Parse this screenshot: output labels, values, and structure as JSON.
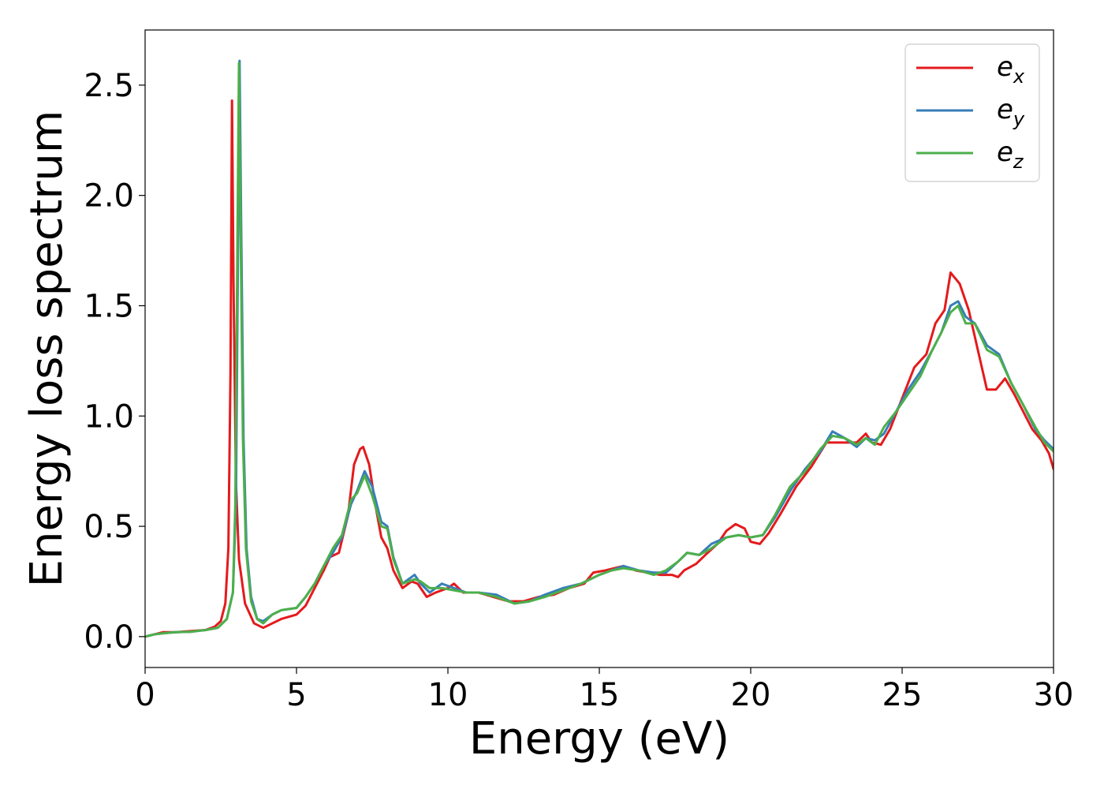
{
  "chart_data": {
    "type": "line",
    "xlabel": "Energy (eV)",
    "ylabel": "Energy loss spectrum",
    "xlim": [
      0,
      30
    ],
    "ylim": [
      -0.14,
      2.75
    ],
    "x_ticks": [
      "0",
      "5",
      "10",
      "15",
      "20",
      "25",
      "30"
    ],
    "y_ticks": [
      "0.0",
      "0.5",
      "1.0",
      "1.5",
      "2.0",
      "2.5"
    ],
    "grid": false,
    "legend_position": "top-right",
    "series": [
      {
        "name": "e_x",
        "legend_base": "e",
        "legend_sub": "x",
        "color": "#e41a1c",
        "points": [
          [
            0,
            0
          ],
          [
            0.3,
            0.01
          ],
          [
            0.6,
            0.02
          ],
          [
            1.0,
            0.02
          ],
          [
            1.5,
            0.025
          ],
          [
            2.0,
            0.03
          ],
          [
            2.3,
            0.045
          ],
          [
            2.5,
            0.07
          ],
          [
            2.65,
            0.15
          ],
          [
            2.75,
            0.4
          ],
          [
            2.82,
            1.2
          ],
          [
            2.87,
            2.43
          ],
          [
            2.92,
            1.6
          ],
          [
            3.0,
            0.7
          ],
          [
            3.1,
            0.35
          ],
          [
            3.3,
            0.15
          ],
          [
            3.6,
            0.06
          ],
          [
            3.9,
            0.04
          ],
          [
            4.2,
            0.06
          ],
          [
            4.5,
            0.08
          ],
          [
            5.0,
            0.1
          ],
          [
            5.3,
            0.14
          ],
          [
            5.6,
            0.22
          ],
          [
            5.9,
            0.3
          ],
          [
            6.1,
            0.36
          ],
          [
            6.4,
            0.38
          ],
          [
            6.7,
            0.55
          ],
          [
            6.9,
            0.78
          ],
          [
            7.1,
            0.85
          ],
          [
            7.2,
            0.86
          ],
          [
            7.4,
            0.78
          ],
          [
            7.6,
            0.6
          ],
          [
            7.8,
            0.45
          ],
          [
            8.0,
            0.4
          ],
          [
            8.2,
            0.3
          ],
          [
            8.5,
            0.22
          ],
          [
            8.8,
            0.25
          ],
          [
            9.0,
            0.24
          ],
          [
            9.3,
            0.18
          ],
          [
            9.6,
            0.2
          ],
          [
            10.0,
            0.22
          ],
          [
            10.2,
            0.24
          ],
          [
            10.5,
            0.2
          ],
          [
            11.0,
            0.2
          ],
          [
            11.5,
            0.18
          ],
          [
            12.0,
            0.16
          ],
          [
            12.5,
            0.16
          ],
          [
            13.0,
            0.18
          ],
          [
            13.5,
            0.19
          ],
          [
            14.0,
            0.22
          ],
          [
            14.5,
            0.24
          ],
          [
            14.8,
            0.29
          ],
          [
            15.2,
            0.3
          ],
          [
            15.8,
            0.32
          ],
          [
            16.2,
            0.3
          ],
          [
            16.6,
            0.29
          ],
          [
            17.0,
            0.28
          ],
          [
            17.4,
            0.28
          ],
          [
            17.6,
            0.27
          ],
          [
            17.8,
            0.3
          ],
          [
            18.2,
            0.33
          ],
          [
            18.5,
            0.37
          ],
          [
            18.9,
            0.42
          ],
          [
            19.2,
            0.48
          ],
          [
            19.5,
            0.51
          ],
          [
            19.8,
            0.49
          ],
          [
            20.0,
            0.43
          ],
          [
            20.3,
            0.42
          ],
          [
            20.6,
            0.47
          ],
          [
            21.0,
            0.56
          ],
          [
            21.5,
            0.68
          ],
          [
            22.0,
            0.77
          ],
          [
            22.5,
            0.88
          ],
          [
            23.0,
            0.88
          ],
          [
            23.5,
            0.88
          ],
          [
            23.8,
            0.92
          ],
          [
            24.0,
            0.88
          ],
          [
            24.3,
            0.87
          ],
          [
            24.6,
            0.94
          ],
          [
            25.0,
            1.08
          ],
          [
            25.4,
            1.22
          ],
          [
            25.8,
            1.28
          ],
          [
            26.1,
            1.42
          ],
          [
            26.4,
            1.48
          ],
          [
            26.6,
            1.65
          ],
          [
            26.9,
            1.6
          ],
          [
            27.2,
            1.48
          ],
          [
            27.5,
            1.3
          ],
          [
            27.8,
            1.12
          ],
          [
            28.1,
            1.12
          ],
          [
            28.4,
            1.17
          ],
          [
            28.7,
            1.1
          ],
          [
            29.0,
            1.02
          ],
          [
            29.3,
            0.94
          ],
          [
            29.6,
            0.89
          ],
          [
            29.85,
            0.83
          ],
          [
            30.0,
            0.76
          ]
        ]
      },
      {
        "name": "e_y",
        "legend_base": "e",
        "legend_sub": "y",
        "color": "#377eb8",
        "points": [
          [
            0,
            0
          ],
          [
            0.3,
            0.01
          ],
          [
            0.6,
            0.015
          ],
          [
            1.0,
            0.02
          ],
          [
            1.5,
            0.022
          ],
          [
            2.0,
            0.03
          ],
          [
            2.4,
            0.04
          ],
          [
            2.7,
            0.08
          ],
          [
            2.9,
            0.2
          ],
          [
            3.0,
            0.6
          ],
          [
            3.07,
            1.8
          ],
          [
            3.12,
            2.61
          ],
          [
            3.17,
            1.9
          ],
          [
            3.25,
            0.9
          ],
          [
            3.35,
            0.4
          ],
          [
            3.5,
            0.18
          ],
          [
            3.7,
            0.08
          ],
          [
            3.9,
            0.07
          ],
          [
            4.2,
            0.1
          ],
          [
            4.5,
            0.12
          ],
          [
            5.0,
            0.13
          ],
          [
            5.3,
            0.18
          ],
          [
            5.6,
            0.24
          ],
          [
            5.9,
            0.32
          ],
          [
            6.2,
            0.38
          ],
          [
            6.5,
            0.45
          ],
          [
            6.8,
            0.6
          ],
          [
            7.0,
            0.66
          ],
          [
            7.25,
            0.75
          ],
          [
            7.5,
            0.68
          ],
          [
            7.8,
            0.52
          ],
          [
            8.0,
            0.5
          ],
          [
            8.2,
            0.36
          ],
          [
            8.5,
            0.24
          ],
          [
            8.9,
            0.28
          ],
          [
            9.1,
            0.24
          ],
          [
            9.4,
            0.2
          ],
          [
            9.8,
            0.24
          ],
          [
            10.2,
            0.22
          ],
          [
            10.6,
            0.2
          ],
          [
            11.0,
            0.2
          ],
          [
            11.6,
            0.19
          ],
          [
            12.2,
            0.15
          ],
          [
            12.7,
            0.16
          ],
          [
            13.2,
            0.19
          ],
          [
            13.8,
            0.22
          ],
          [
            14.4,
            0.24
          ],
          [
            15.0,
            0.28
          ],
          [
            15.4,
            0.3
          ],
          [
            15.8,
            0.32
          ],
          [
            16.3,
            0.3
          ],
          [
            16.8,
            0.29
          ],
          [
            17.2,
            0.29
          ],
          [
            17.6,
            0.34
          ],
          [
            17.9,
            0.38
          ],
          [
            18.3,
            0.37
          ],
          [
            18.7,
            0.42
          ],
          [
            19.2,
            0.45
          ],
          [
            19.6,
            0.46
          ],
          [
            20.0,
            0.45
          ],
          [
            20.4,
            0.46
          ],
          [
            20.8,
            0.54
          ],
          [
            21.3,
            0.66
          ],
          [
            21.8,
            0.76
          ],
          [
            22.3,
            0.84
          ],
          [
            22.7,
            0.93
          ],
          [
            23.1,
            0.9
          ],
          [
            23.5,
            0.86
          ],
          [
            23.8,
            0.9
          ],
          [
            24.1,
            0.89
          ],
          [
            24.4,
            0.92
          ],
          [
            24.8,
            1.02
          ],
          [
            25.2,
            1.12
          ],
          [
            25.6,
            1.2
          ],
          [
            26.0,
            1.3
          ],
          [
            26.3,
            1.38
          ],
          [
            26.6,
            1.5
          ],
          [
            26.85,
            1.52
          ],
          [
            27.1,
            1.45
          ],
          [
            27.4,
            1.42
          ],
          [
            27.8,
            1.32
          ],
          [
            28.2,
            1.28
          ],
          [
            28.6,
            1.15
          ],
          [
            29.0,
            1.05
          ],
          [
            29.4,
            0.94
          ],
          [
            29.7,
            0.89
          ],
          [
            30.0,
            0.85
          ]
        ]
      },
      {
        "name": "e_z",
        "legend_base": "e",
        "legend_sub": "z",
        "color": "#4daf4a",
        "points": [
          [
            0,
            0
          ],
          [
            0.3,
            0.01
          ],
          [
            0.6,
            0.015
          ],
          [
            1.0,
            0.02
          ],
          [
            1.5,
            0.022
          ],
          [
            2.0,
            0.03
          ],
          [
            2.4,
            0.04
          ],
          [
            2.7,
            0.08
          ],
          [
            2.9,
            0.2
          ],
          [
            2.98,
            0.6
          ],
          [
            3.05,
            1.8
          ],
          [
            3.1,
            2.6
          ],
          [
            3.15,
            1.9
          ],
          [
            3.23,
            0.9
          ],
          [
            3.33,
            0.4
          ],
          [
            3.5,
            0.16
          ],
          [
            3.7,
            0.08
          ],
          [
            3.9,
            0.06
          ],
          [
            4.2,
            0.1
          ],
          [
            4.5,
            0.12
          ],
          [
            5.0,
            0.13
          ],
          [
            5.3,
            0.18
          ],
          [
            5.6,
            0.24
          ],
          [
            5.9,
            0.32
          ],
          [
            6.2,
            0.4
          ],
          [
            6.5,
            0.46
          ],
          [
            6.8,
            0.62
          ],
          [
            7.0,
            0.65
          ],
          [
            7.25,
            0.73
          ],
          [
            7.5,
            0.64
          ],
          [
            7.8,
            0.5
          ],
          [
            8.0,
            0.49
          ],
          [
            8.2,
            0.35
          ],
          [
            8.5,
            0.24
          ],
          [
            8.9,
            0.26
          ],
          [
            9.1,
            0.25
          ],
          [
            9.4,
            0.22
          ],
          [
            9.8,
            0.22
          ],
          [
            10.2,
            0.21
          ],
          [
            10.6,
            0.2
          ],
          [
            11.0,
            0.2
          ],
          [
            11.6,
            0.18
          ],
          [
            12.2,
            0.15
          ],
          [
            12.7,
            0.16
          ],
          [
            13.2,
            0.18
          ],
          [
            13.8,
            0.21
          ],
          [
            14.4,
            0.24
          ],
          [
            15.0,
            0.28
          ],
          [
            15.4,
            0.3
          ],
          [
            15.8,
            0.31
          ],
          [
            16.3,
            0.3
          ],
          [
            16.8,
            0.28
          ],
          [
            17.2,
            0.3
          ],
          [
            17.6,
            0.34
          ],
          [
            17.9,
            0.38
          ],
          [
            18.3,
            0.37
          ],
          [
            18.7,
            0.4
          ],
          [
            19.2,
            0.45
          ],
          [
            19.6,
            0.46
          ],
          [
            20.0,
            0.45
          ],
          [
            20.4,
            0.46
          ],
          [
            20.8,
            0.55
          ],
          [
            21.3,
            0.68
          ],
          [
            21.8,
            0.75
          ],
          [
            22.3,
            0.85
          ],
          [
            22.7,
            0.91
          ],
          [
            23.1,
            0.9
          ],
          [
            23.5,
            0.87
          ],
          [
            23.8,
            0.9
          ],
          [
            24.1,
            0.87
          ],
          [
            24.4,
            0.95
          ],
          [
            24.8,
            1.02
          ],
          [
            25.2,
            1.1
          ],
          [
            25.6,
            1.18
          ],
          [
            26.0,
            1.3
          ],
          [
            26.3,
            1.38
          ],
          [
            26.6,
            1.47
          ],
          [
            26.85,
            1.5
          ],
          [
            27.1,
            1.42
          ],
          [
            27.4,
            1.42
          ],
          [
            27.8,
            1.3
          ],
          [
            28.2,
            1.27
          ],
          [
            28.6,
            1.15
          ],
          [
            29.0,
            1.05
          ],
          [
            29.4,
            0.95
          ],
          [
            29.7,
            0.88
          ],
          [
            30.0,
            0.84
          ]
        ]
      }
    ]
  }
}
